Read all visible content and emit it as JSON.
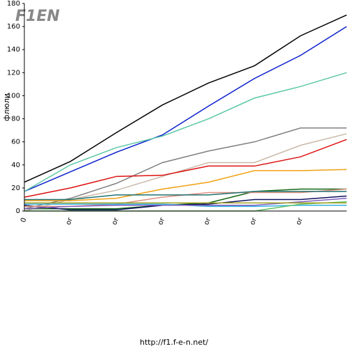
{
  "chart_data": {
    "type": "line",
    "logo": "F1EN",
    "y_label": "флюли",
    "footer": "http://f1.f-e-n.net/",
    "categories": [
      "0",
      "or",
      "or",
      "or",
      "or",
      "or",
      "or",
      null
    ],
    "ylim": [
      0,
      180
    ],
    "yticks": [
      0,
      20,
      40,
      60,
      80,
      100,
      120,
      140,
      160,
      180
    ],
    "grid": false,
    "series": [
      {
        "name": "black",
        "color": "#000000",
        "values": [
          25,
          43,
          68,
          92,
          111,
          126,
          152,
          170
        ]
      },
      {
        "name": "blue",
        "color": "#0a1ecc",
        "values": [
          17,
          34,
          51,
          66,
          91,
          115,
          135,
          160
        ]
      },
      {
        "name": "teal",
        "color": "#5cc7a8",
        "values": [
          17,
          40,
          55,
          65,
          80,
          98,
          108,
          120
        ]
      },
      {
        "name": "gray",
        "color": "#808080",
        "values": [
          2,
          11,
          24,
          42,
          52,
          60,
          72,
          72
        ]
      },
      {
        "name": "tan",
        "color": "#c8b8a8",
        "values": [
          0,
          10,
          18,
          30,
          42,
          42,
          57,
          67
        ]
      },
      {
        "name": "red",
        "color": "#dd1111",
        "values": [
          12,
          20,
          30,
          31,
          39,
          39,
          47,
          62
        ]
      },
      {
        "name": "orange",
        "color": "#f0a010",
        "values": [
          9,
          9,
          11,
          19,
          25,
          35,
          35,
          36
        ]
      },
      {
        "name": "green",
        "color": "#116611",
        "values": [
          2,
          2,
          2,
          5,
          7,
          17,
          19,
          19
        ]
      },
      {
        "name": "navy",
        "color": "#101060",
        "values": [
          5,
          1,
          1,
          5,
          6,
          10,
          10,
          13
        ]
      },
      {
        "name": "salmon",
        "color": "#e09080",
        "values": [
          4,
          4,
          6,
          12,
          16,
          16,
          16,
          19
        ]
      },
      {
        "name": "darkteal",
        "color": "#207070",
        "values": [
          10,
          10,
          14,
          14,
          14,
          17,
          17,
          17
        ]
      },
      {
        "name": "lightblue",
        "color": "#30b0e0",
        "values": [
          6,
          6,
          6,
          6,
          4,
          4,
          5,
          5
        ]
      },
      {
        "name": "purple",
        "color": "#8060c0",
        "values": [
          2,
          4,
          5,
          5,
          5,
          5,
          8,
          11
        ]
      },
      {
        "name": "lightgreen",
        "color": "#60c060",
        "values": [
          0,
          0,
          0,
          0,
          0,
          0,
          6,
          8
        ]
      },
      {
        "name": "olive",
        "color": "#a0a020",
        "values": [
          7,
          7,
          7,
          7,
          7,
          7,
          7,
          7
        ]
      }
    ]
  }
}
